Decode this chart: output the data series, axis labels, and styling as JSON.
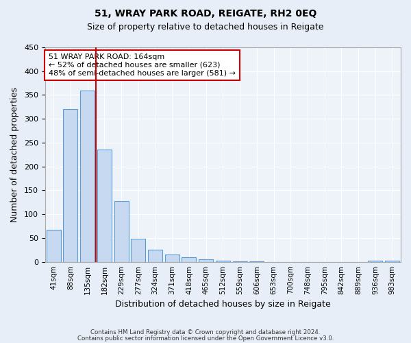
{
  "title1": "51, WRAY PARK ROAD, REIGATE, RH2 0EQ",
  "title2": "Size of property relative to detached houses in Reigate",
  "xlabel": "Distribution of detached houses by size in Reigate",
  "ylabel": "Number of detached properties",
  "bar_labels": [
    "41sqm",
    "88sqm",
    "135sqm",
    "182sqm",
    "229sqm",
    "277sqm",
    "324sqm",
    "371sqm",
    "418sqm",
    "465sqm",
    "512sqm",
    "559sqm",
    "606sqm",
    "653sqm",
    "700sqm",
    "748sqm",
    "795sqm",
    "842sqm",
    "889sqm",
    "936sqm",
    "983sqm"
  ],
  "bar_values": [
    67,
    320,
    360,
    235,
    127,
    48,
    25,
    16,
    10,
    5,
    2,
    1,
    1,
    0,
    0,
    0,
    0,
    0,
    0,
    3,
    2
  ],
  "bar_color": "#c6d9f0",
  "bar_edgecolor": "#5b9bd5",
  "vline_x": 2.5,
  "vline_color": "#cc0000",
  "annotation_text": "51 WRAY PARK ROAD: 164sqm\n← 52% of detached houses are smaller (623)\n48% of semi-detached houses are larger (581) →",
  "annotation_box_edgecolor": "#cc0000",
  "annotation_box_facecolor": "#ffffff",
  "ylim": [
    0,
    450
  ],
  "yticks": [
    0,
    50,
    100,
    150,
    200,
    250,
    300,
    350,
    400,
    450
  ],
  "footnote1": "Contains HM Land Registry data © Crown copyright and database right 2024.",
  "footnote2": "Contains public sector information licensed under the Open Government Licence v3.0.",
  "bg_color": "#e8eef7",
  "plot_bg_color": "#eef2f9",
  "grid_color": "#ffffff"
}
